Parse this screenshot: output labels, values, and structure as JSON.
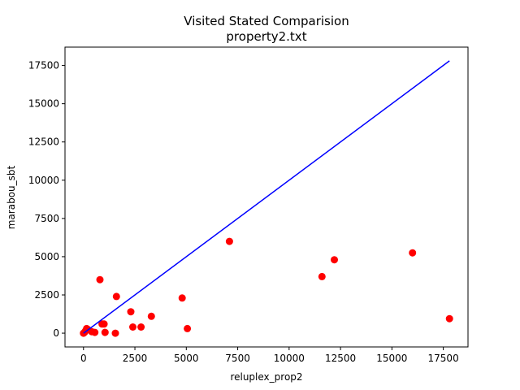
{
  "chart_data": {
    "type": "scatter",
    "title": "Visited Stated Comparision",
    "subtitle": "property2.txt",
    "xlabel": "reluplex_prop2",
    "ylabel": "marabou_sbt",
    "xlim": [
      -900,
      18700
    ],
    "ylim": [
      -900,
      18700
    ],
    "xticks": [
      0,
      2500,
      5000,
      7500,
      10000,
      12500,
      15000,
      17500
    ],
    "yticks": [
      0,
      2500,
      5000,
      7500,
      10000,
      12500,
      15000,
      17500
    ],
    "grid": false,
    "legend": "none",
    "series": [
      {
        "kind": "scatter",
        "color": "#ff0000",
        "x": [
          0,
          50,
          100,
          150,
          200,
          400,
          550,
          800,
          900,
          1000,
          1050,
          1550,
          1600,
          2300,
          2400,
          2800,
          3300,
          4800,
          5050,
          7100,
          11600,
          12200,
          16000,
          17800
        ],
        "y": [
          0,
          50,
          150,
          300,
          250,
          100,
          50,
          3500,
          600,
          600,
          50,
          0,
          2400,
          1400,
          400,
          400,
          1100,
          2300,
          300,
          6000,
          3700,
          4800,
          5250,
          950
        ]
      },
      {
        "kind": "line",
        "color": "#0000ff",
        "x": [
          0,
          17800
        ],
        "y": [
          0,
          17800
        ]
      }
    ]
  }
}
